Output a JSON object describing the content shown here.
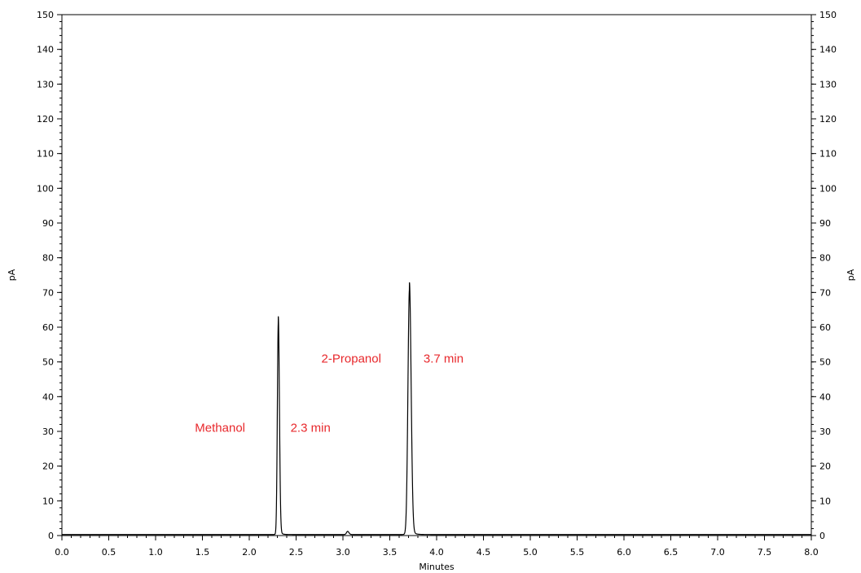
{
  "chart_data": {
    "type": "line",
    "xlabel": "Minutes",
    "ylabel": "pA",
    "ylabel_right": "pA",
    "xlim": [
      0,
      8
    ],
    "ylim": [
      0,
      150
    ],
    "x_ticks": [
      "0.0",
      "0.5",
      "1.0",
      "1.5",
      "2.0",
      "2.5",
      "3.0",
      "3.5",
      "4.0",
      "4.5",
      "5.0",
      "5.5",
      "6.0",
      "6.5",
      "7.0",
      "7.5",
      "8.0"
    ],
    "y_ticks": [
      "0",
      "10",
      "20",
      "30",
      "40",
      "50",
      "60",
      "70",
      "80",
      "90",
      "100",
      "110",
      "120",
      "130",
      "140",
      "150"
    ],
    "grid": false,
    "line_color": "#000000",
    "annotation_color": "#e8282c",
    "peaks": [
      {
        "x": 2.31,
        "y": 61
      },
      {
        "x": 3.05,
        "y": 0.9
      },
      {
        "x": 3.71,
        "y": 70.5
      }
    ],
    "annotations": [
      {
        "text": "Methanol",
        "x": 1.42,
        "y": 31
      },
      {
        "text": "2.3 min",
        "x": 2.44,
        "y": 31
      },
      {
        "text": "2-Propanol",
        "x": 2.77,
        "y": 51
      },
      {
        "text": "3.7 min",
        "x": 3.86,
        "y": 51
      }
    ]
  }
}
